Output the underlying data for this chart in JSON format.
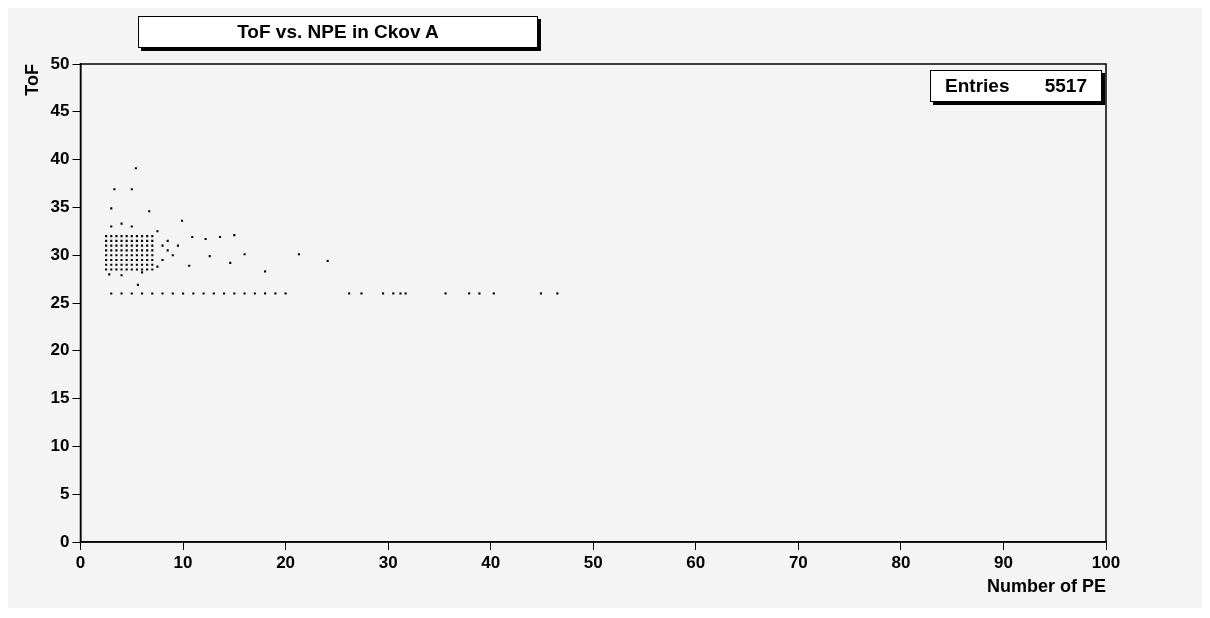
{
  "chart_data": {
    "type": "scatter",
    "title": "ToF vs. NPE in Ckov A",
    "xlabel": "Number of PE",
    "ylabel": "ToF",
    "annotations": [
      "Entries 5517"
    ],
    "xlim": [
      0,
      100
    ],
    "ylim": [
      0,
      50
    ],
    "xticks": [
      0,
      10,
      20,
      30,
      40,
      50,
      60,
      70,
      80,
      90,
      100
    ],
    "yticks": [
      0,
      5,
      10,
      15,
      20,
      25,
      30,
      35,
      40,
      45,
      50
    ],
    "grid": false,
    "legend": false,
    "marker": "square",
    "series": [
      {
        "color": "#000000",
        "x": [
          2.5,
          3,
          3.5,
          4,
          4.5,
          5,
          5.5,
          6,
          6.5,
          7,
          2.5,
          3,
          3.5,
          4,
          4.5,
          5,
          5.5,
          6,
          6.5,
          7,
          2.5,
          3,
          3.5,
          4,
          4.5,
          5,
          5.5,
          6,
          6.5,
          7,
          2.5,
          3,
          3.5,
          4,
          4.5,
          5,
          5.5,
          6,
          6.5,
          7,
          2.5,
          3,
          3.5,
          4,
          4.5,
          5,
          5.5,
          6,
          6.5,
          7,
          2.5,
          3,
          3.5,
          4,
          4.5,
          5,
          5.5,
          6,
          6.5,
          7,
          2.5,
          3,
          3.5,
          4,
          4.5,
          5,
          5.5,
          6,
          6.5,
          7,
          2.5,
          3,
          3.5,
          4,
          4.5,
          5,
          5.5,
          6,
          6.5,
          7,
          8,
          8.5,
          9,
          8,
          8.5,
          9.5,
          3,
          4,
          5,
          2.8,
          4,
          6,
          7.5,
          7.5,
          5.4,
          3.3,
          5,
          3,
          6.7,
          9.9,
          15,
          12.2,
          13.6,
          12.6,
          16,
          14.6,
          21.3,
          24.1,
          18,
          5.6,
          10.6,
          10.9,
          3,
          4,
          5,
          6,
          7,
          8,
          9,
          10,
          11,
          12,
          13,
          14,
          15,
          16,
          17,
          18,
          19,
          20,
          26.2,
          27.4,
          29.5,
          30.5,
          31.2,
          31.7,
          35.6,
          37.9,
          38.9,
          40.3,
          44.9,
          46.5
        ],
        "values": [
          28.5,
          28.5,
          28.5,
          28.5,
          28.5,
          28.5,
          28.5,
          28.5,
          28.5,
          28.5,
          29,
          29,
          29,
          29,
          29,
          29,
          29,
          29,
          29,
          29,
          29.5,
          29.5,
          29.5,
          29.5,
          29.5,
          29.5,
          29.5,
          29.5,
          29.5,
          29.5,
          30,
          30,
          30,
          30,
          30,
          30,
          30,
          30,
          30,
          30,
          30.5,
          30.5,
          30.5,
          30.5,
          30.5,
          30.5,
          30.5,
          30.5,
          30.5,
          30.5,
          31,
          31,
          31,
          31,
          31,
          31,
          31,
          31,
          31,
          31,
          31.5,
          31.5,
          31.5,
          31.5,
          31.5,
          31.5,
          31.5,
          31.5,
          31.5,
          31.5,
          32,
          32,
          32,
          32,
          32,
          32,
          32,
          32,
          32,
          32,
          31,
          30.5,
          30,
          29.5,
          31.5,
          31,
          33,
          33.3,
          33,
          28,
          27.9,
          28.2,
          32.5,
          28.8,
          39.1,
          36.9,
          36.9,
          34.9,
          34.6,
          33.6,
          32.1,
          31.7,
          31.9,
          29.9,
          30.1,
          29.2,
          30.1,
          29.4,
          28.3,
          26.9,
          28.9,
          31.9,
          26,
          26,
          26,
          26,
          26,
          26,
          26,
          26,
          26,
          26,
          26,
          26,
          26,
          26,
          26,
          26,
          26,
          26,
          26,
          26,
          26,
          26,
          26,
          26,
          26,
          26,
          26,
          26,
          26,
          26
        ]
      }
    ]
  }
}
